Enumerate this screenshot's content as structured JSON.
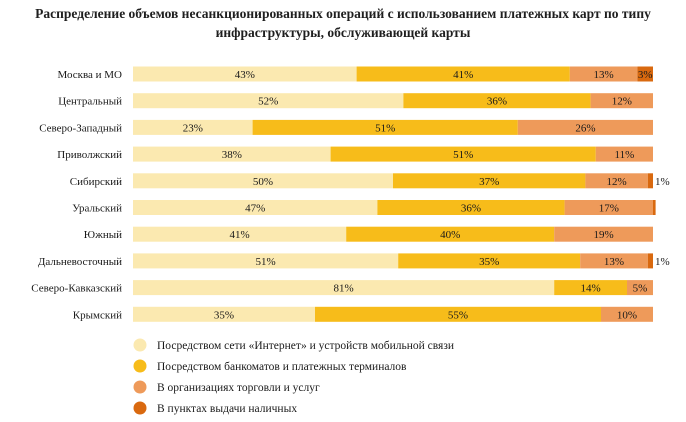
{
  "chart_data": {
    "type": "bar",
    "orientation": "horizontal",
    "stacked": true,
    "title_lines": [
      "Распределение объемов несанкционированных операций с использованием платежных карт по типу",
      "инфраструктуры, обслуживающей карты"
    ],
    "categories": [
      "Москва и МО",
      "Центральный",
      "Северо-Западный",
      "Приволжский",
      "Сибирский",
      "Уральский",
      "Южный",
      "Дальневосточный",
      "Северо-Кавказский",
      "Крымский"
    ],
    "series": [
      {
        "name": "Посредством сети «Интернет» и устройств мобильной связи",
        "color": "#fbe9b0",
        "values": [
          43,
          52,
          23,
          38,
          50,
          47,
          41,
          51,
          81,
          35
        ],
        "labels": [
          "43%",
          "52%",
          "23%",
          "38%",
          "50%",
          "47%",
          "41%",
          "51%",
          "81%",
          "35%"
        ]
      },
      {
        "name": "Посредством банкоматов и платежных терминалов",
        "color": "#f7bc1a",
        "values": [
          41,
          36,
          51,
          51,
          37,
          36,
          40,
          35,
          14,
          55
        ],
        "labels": [
          "41%",
          "36%",
          "51%",
          "51%",
          "37%",
          "36%",
          "40%",
          "35%",
          "14%",
          "55%"
        ]
      },
      {
        "name": "В организациях торговли и услуг",
        "color": "#ee9a5a",
        "values": [
          13,
          12,
          26,
          11,
          12,
          17,
          19,
          13,
          5,
          10
        ],
        "labels": [
          "13%",
          "12%",
          "26%",
          "11%",
          "12%",
          "17%",
          "19%",
          "13%",
          "5%",
          "10%"
        ]
      },
      {
        "name": "В пунктах выдачи наличных",
        "color": "#d9690f",
        "values": [
          3,
          0,
          0,
          0,
          1,
          0.5,
          0,
          1,
          0,
          0
        ],
        "labels": [
          "3%",
          "",
          "",
          "",
          "1%",
          "",
          "",
          "1%",
          "",
          ""
        ]
      }
    ],
    "xlim": [
      0,
      100
    ],
    "grid": false,
    "legend_position": "bottom-left"
  }
}
